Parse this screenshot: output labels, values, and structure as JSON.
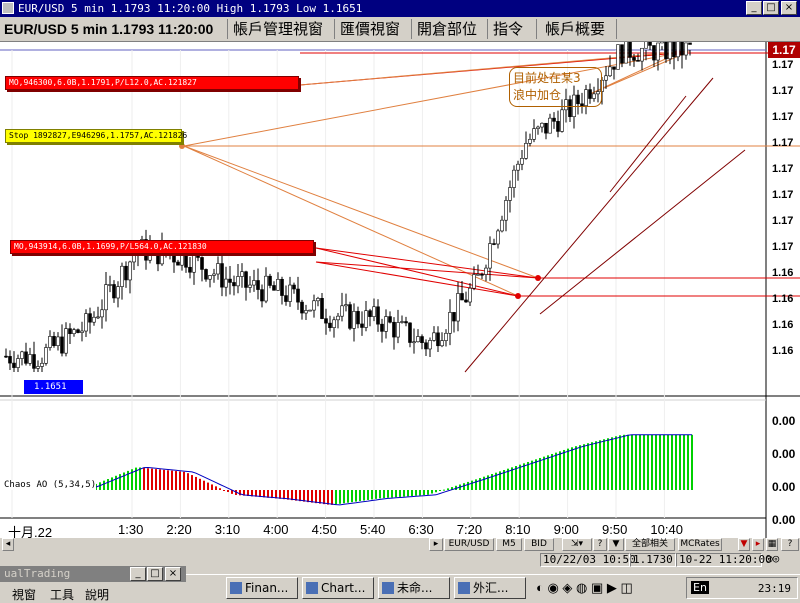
{
  "window": {
    "title": "EUR/USD 5 min 1.1793 11:20:00 High 1.1793 Low 1.1651",
    "min_label": "_",
    "max_label": "□",
    "close_label": "×"
  },
  "tabs": [
    {
      "label": "EUR/USD 5 min 1.1793 11:20:00"
    },
    {
      "label": "帳戶管理視窗"
    },
    {
      "label": "匯價視窗"
    },
    {
      "label": "開倉部位"
    },
    {
      "label": "指令"
    },
    {
      "label": "帳戶概要"
    }
  ],
  "orders": {
    "mo1": "MO,946300,6.0B,1.1791,P/L12.0,AC.121827",
    "stop": "Stop 1892827,E946296,1.1757,AC.121826",
    "mo2": "MO,943914,6.0B,1.1699,P/L564.0,AC.121830"
  },
  "annotation": {
    "line1": "目前处在某3",
    "line2": "浪中加仓"
  },
  "price_badge": "1.1651",
  "chaos_label": "Chaos AO (5,34,5)",
  "y_axis": {
    "last_price": "1.17",
    "ticks": [
      "1.17",
      "1.17",
      "1.17",
      "1.17",
      "1.17",
      "1.17",
      "1.17",
      "1.17",
      "1.16",
      "1.16",
      "1.16",
      "1.16"
    ],
    "indicator_ticks": [
      "0.00",
      "0.00",
      "0.00",
      "0.00"
    ]
  },
  "x_axis": {
    "ticks": [
      "十月.22",
      "1:30",
      "2:20",
      "3:10",
      "4:00",
      "4:50",
      "5:40",
      "6:30",
      "7:20",
      "8:10",
      "9:00",
      "9:50",
      "10:40"
    ]
  },
  "bottom_bar": {
    "symbol": "EUR/USD",
    "timeframe": "M5",
    "side": "BID",
    "source": "MCRates",
    "indicator_btn": "全部相关"
  },
  "status_bar": {
    "datetime": "10/22/03  10:50",
    "price": "1.1730",
    "stamp": "10-22  11:20:00"
  },
  "child_window": {
    "title": "ualTrading",
    "menu": [
      "視窗",
      "工具",
      "說明"
    ]
  },
  "taskbar": {
    "items": [
      "Finan...",
      "Chart...",
      "未命...",
      "外汇..."
    ],
    "clock": "23:19",
    "ime": "En"
  },
  "chart_data": {
    "type": "candlestick",
    "symbol": "EUR/USD",
    "timeframe": "5 min",
    "high": 1.1793,
    "low": 1.1651,
    "last": 1.1793,
    "x": [
      "十月.22",
      "1:30",
      "2:20",
      "3:10",
      "4:00",
      "4:50",
      "5:40",
      "6:30",
      "7:20",
      "8:10",
      "9:00",
      "9:50",
      "10:40"
    ],
    "close_estimate": [
      1.1658,
      1.1672,
      1.1705,
      1.1702,
      1.169,
      1.1686,
      1.1676,
      1.1674,
      1.1663,
      1.169,
      1.1752,
      1.1768,
      1.1793
    ],
    "order_levels": [
      1.1791,
      1.1757,
      1.1699
    ],
    "indicator": {
      "name": "Chaos AO (5,34,5)",
      "values": [
        0.0,
        0.05,
        0.38,
        0.3,
        -0.08,
        -0.15,
        -0.25,
        -0.14,
        -0.08,
        0.18,
        0.45,
        0.72,
        0.92
      ]
    }
  }
}
